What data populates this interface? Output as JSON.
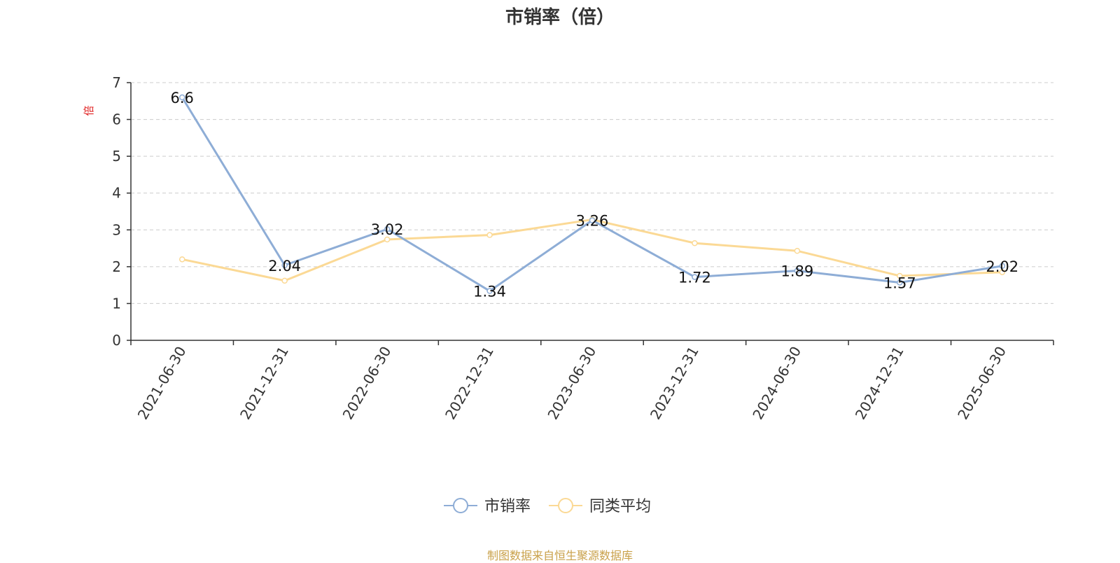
{
  "chart_data": {
    "type": "line",
    "title": "市销率（倍）",
    "ylabel": "倍",
    "xlabel": "",
    "ylim": [
      0,
      7
    ],
    "yticks": [
      0,
      1,
      2,
      3,
      4,
      5,
      6,
      7
    ],
    "grid": true,
    "legend": "bottom-center",
    "categories": [
      "2021-06-30",
      "2021-12-31",
      "2022-06-30",
      "2022-12-31",
      "2023-06-30",
      "2023-12-31",
      "2024-06-30",
      "2024-12-31",
      "2025-06-30"
    ],
    "series": [
      {
        "name": "市销率",
        "color": "#8eadd6",
        "values": [
          6.6,
          2.04,
          3.02,
          1.34,
          3.26,
          1.72,
          1.89,
          1.57,
          2.02
        ],
        "labels": [
          "6.6",
          "2.04",
          "3.02",
          "1.34",
          "3.26",
          "1.72",
          "1.89",
          "1.57",
          "2.02"
        ]
      },
      {
        "name": "同类平均",
        "color": "#fbd995",
        "values": [
          2.2,
          1.62,
          2.74,
          2.86,
          3.28,
          2.64,
          2.43,
          1.75,
          1.85
        ]
      }
    ]
  },
  "colors": {
    "axis": "#333333",
    "grid": "#cccccc",
    "ylabel": "#e02020",
    "source": "#c9a14a"
  },
  "source": "制图数据来自恒生聚源数据库"
}
